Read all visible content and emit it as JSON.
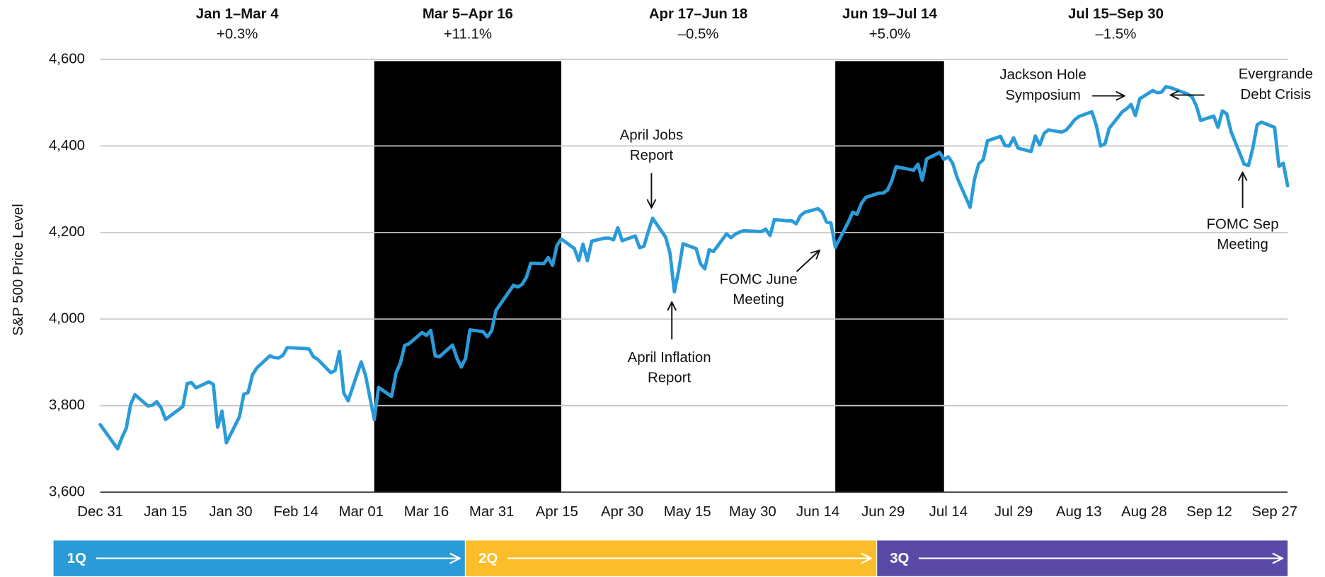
{
  "chart_data": {
    "type": "line",
    "y_label": "S&P 500 Price Level",
    "color": "#2a9bd8",
    "grid": true,
    "xlim": [
      "Dec 31",
      "Sep 30"
    ],
    "xticks": [
      "Dec 31",
      "Jan 15",
      "Jan 30",
      "Feb 14",
      "Mar 01",
      "Mar 16",
      "Mar 31",
      "Apr 15",
      "Apr 30",
      "May 15",
      "May 30",
      "Jun 14",
      "Jun 29",
      "Jul 14",
      "Jul 29",
      "Aug 13",
      "Aug 28",
      "Sep 12",
      "Sep 27"
    ],
    "ylim": [
      3600,
      4600
    ],
    "yticks": [
      {
        "value": 3600,
        "label": "3,600"
      },
      {
        "value": 3800,
        "label": "3,800"
      },
      {
        "value": 4000,
        "label": "4,000"
      },
      {
        "value": 4200,
        "label": "4,200"
      },
      {
        "value": 4400,
        "label": "4,400"
      },
      {
        "value": 4600,
        "label": "4,600"
      }
    ],
    "periods": [
      {
        "label": "Jan 1–Mar 4",
        "change": 0.3,
        "change_label": "+0.3%",
        "start": "Dec 31",
        "end": "Mar 4",
        "shaded": false
      },
      {
        "label": "Mar 5–Apr 16",
        "change": 11.1,
        "change_label": "+11.1%",
        "start": "Mar 4",
        "end": "Apr 16",
        "shaded": true
      },
      {
        "label": "Apr 17–Jun 18",
        "change": -0.5,
        "change_label": "–0.5%",
        "start": "Apr 16",
        "end": "Jun 18",
        "shaded": false
      },
      {
        "label": "Jun 19–Jul 14",
        "change": 5.0,
        "change_label": "+5.0%",
        "start": "Jun 18",
        "end": "Jul 13",
        "shaded": true
      },
      {
        "label": "Jul 15–Sep 30",
        "change": -1.5,
        "change_label": "–1.5%",
        "start": "Jul 13",
        "end": "Sep 30",
        "shaded": false
      }
    ],
    "annotations": [
      {
        "lines": [
          "April Jobs",
          "Report"
        ]
      },
      {
        "lines": [
          "April Inflation",
          "Report"
        ]
      },
      {
        "lines": [
          "FOMC June",
          "Meeting"
        ]
      },
      {
        "lines": [
          "Jackson Hole",
          "Symposium"
        ]
      },
      {
        "lines": [
          "Evergrande",
          "Debt Crisis"
        ]
      },
      {
        "lines": [
          "FOMC Sep",
          "Meeting"
        ]
      }
    ],
    "quarters": [
      {
        "label": "1Q",
        "color": "#2a9bd8"
      },
      {
        "label": "2Q",
        "color": "#fbbd2a"
      },
      {
        "label": "3Q",
        "color": "#5a4aa6"
      }
    ],
    "x": [
      "Dec 31",
      "Jan 4",
      "Jan 5",
      "Jan 6",
      "Jan 7",
      "Jan 8",
      "Jan 11",
      "Jan 12",
      "Jan 13",
      "Jan 14",
      "Jan 15",
      "Jan 19",
      "Jan 20",
      "Jan 21",
      "Jan 22",
      "Jan 25",
      "Jan 26",
      "Jan 27",
      "Jan 28",
      "Jan 29",
      "Feb 1",
      "Feb 2",
      "Feb 3",
      "Feb 4",
      "Feb 5",
      "Feb 8",
      "Feb 9",
      "Feb 10",
      "Feb 11",
      "Feb 12",
      "Feb 16",
      "Feb 17",
      "Feb 18",
      "Feb 19",
      "Feb 22",
      "Feb 23",
      "Feb 24",
      "Feb 25",
      "Feb 26",
      "Mar 1",
      "Mar 2",
      "Mar 3",
      "Mar 4",
      "Mar 5",
      "Mar 8",
      "Mar 9",
      "Mar 10",
      "Mar 11",
      "Mar 12",
      "Mar 15",
      "Mar 16",
      "Mar 17",
      "Mar 18",
      "Mar 19",
      "Mar 22",
      "Mar 23",
      "Mar 24",
      "Mar 25",
      "Mar 26",
      "Mar 29",
      "Mar 30",
      "Mar 31",
      "Apr 1",
      "Apr 5",
      "Apr 6",
      "Apr 7",
      "Apr 8",
      "Apr 9",
      "Apr 12",
      "Apr 13",
      "Apr 14",
      "Apr 15",
      "Apr 16",
      "Apr 19",
      "Apr 20",
      "Apr 21",
      "Apr 22",
      "Apr 23",
      "Apr 26",
      "Apr 27",
      "Apr 28",
      "Apr 29",
      "Apr 30",
      "May 3",
      "May 4",
      "May 5",
      "May 6",
      "May 7",
      "May 10",
      "May 11",
      "May 12",
      "May 13",
      "May 14",
      "May 17",
      "May 18",
      "May 19",
      "May 20",
      "May 21",
      "May 24",
      "May 25",
      "May 26",
      "May 27",
      "May 28",
      "Jun 1",
      "Jun 2",
      "Jun 3",
      "Jun 4",
      "Jun 7",
      "Jun 8",
      "Jun 9",
      "Jun 10",
      "Jun 11",
      "Jun 14",
      "Jun 15",
      "Jun 16",
      "Jun 17",
      "Jun 18",
      "Jun 21",
      "Jun 22",
      "Jun 23",
      "Jun 24",
      "Jun 25",
      "Jun 28",
      "Jun 29",
      "Jun 30",
      "Jul 1",
      "Jul 2",
      "Jul 6",
      "Jul 7",
      "Jul 8",
      "Jul 9",
      "Jul 12",
      "Jul 13",
      "Jul 14",
      "Jul 15",
      "Jul 16",
      "Jul 19",
      "Jul 20",
      "Jul 21",
      "Jul 22",
      "Jul 23",
      "Jul 26",
      "Jul 27",
      "Jul 28",
      "Jul 29",
      "Jul 30",
      "Aug 2",
      "Aug 3",
      "Aug 4",
      "Aug 5",
      "Aug 6",
      "Aug 9",
      "Aug 10",
      "Aug 11",
      "Aug 12",
      "Aug 13",
      "Aug 16",
      "Aug 17",
      "Aug 18",
      "Aug 19",
      "Aug 20",
      "Aug 23",
      "Aug 24",
      "Aug 25",
      "Aug 26",
      "Aug 27",
      "Aug 30",
      "Aug 31",
      "Sep 1",
      "Sep 2",
      "Sep 3",
      "Sep 7",
      "Sep 8",
      "Sep 9",
      "Sep 10",
      "Sep 13",
      "Sep 14",
      "Sep 15",
      "Sep 16",
      "Sep 17",
      "Sep 20",
      "Sep 21",
      "Sep 22",
      "Sep 23",
      "Sep 24",
      "Sep 27",
      "Sep 28",
      "Sep 29",
      "Sep 30"
    ],
    "values": [
      3756,
      3700,
      3726,
      3748,
      3803,
      3825,
      3799,
      3801,
      3809,
      3795,
      3768,
      3798,
      3851,
      3853,
      3841,
      3855,
      3849,
      3750,
      3787,
      3714,
      3774,
      3826,
      3830,
      3871,
      3887,
      3915,
      3911,
      3910,
      3916,
      3934,
      3932,
      3931,
      3913,
      3907,
      3876,
      3881,
      3925,
      3829,
      3811,
      3901,
      3870,
      3819,
      3768,
      3842,
      3821,
      3875,
      3898,
      3939,
      3943,
      3969,
      3962,
      3974,
      3915,
      3913,
      3940,
      3910,
      3889,
      3909,
      3975,
      3971,
      3959,
      3973,
      4020,
      4078,
      4074,
      4080,
      4097,
      4129,
      4128,
      4142,
      4124,
      4170,
      4185,
      4163,
      4135,
      4173,
      4135,
      4180,
      4187,
      4187,
      4183,
      4211,
      4181,
      4192,
      4165,
      4168,
      4202,
      4233,
      4189,
      4152,
      4063,
      4113,
      4174,
      4163,
      4128,
      4116,
      4160,
      4156,
      4197,
      4188,
      4196,
      4201,
      4204,
      4202,
      4208,
      4193,
      4230,
      4227,
      4227,
      4220,
      4239,
      4247,
      4255,
      4247,
      4224,
      4222,
      4166,
      4224,
      4247,
      4242,
      4267,
      4281,
      4291,
      4291,
      4298,
      4320,
      4352,
      4344,
      4358,
      4321,
      4370,
      4385,
      4369,
      4375,
      4360,
      4327,
      4258,
      4323,
      4359,
      4368,
      4412,
      4422,
      4401,
      4400,
      4419,
      4395,
      4387,
      4423,
      4402,
      4429,
      4437,
      4432,
      4436,
      4447,
      4460,
      4468,
      4479,
      4448,
      4400,
      4405,
      4441,
      4479,
      4486,
      4496,
      4470,
      4509,
      4528,
      4523,
      4524,
      4537,
      4535,
      4520,
      4514,
      4493,
      4459,
      4469,
      4443,
      4481,
      4474,
      4433,
      4358,
      4355,
      4395,
      4449,
      4455,
      4443,
      4353,
      4360,
      4308
    ]
  }
}
